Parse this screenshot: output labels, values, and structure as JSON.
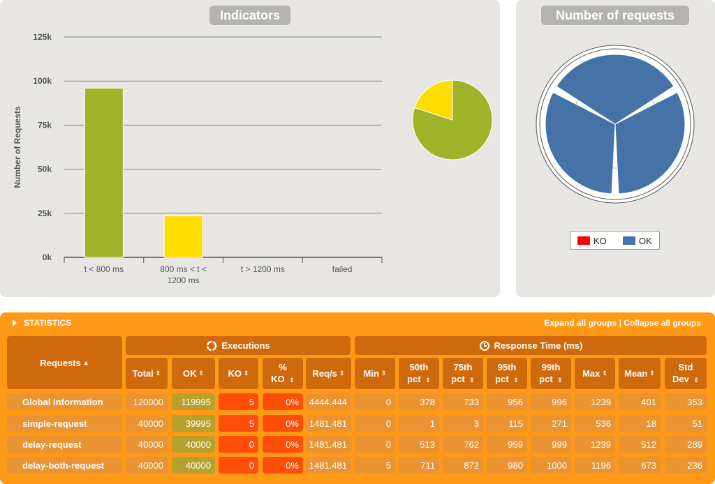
{
  "indicators": {
    "title": "Indicators",
    "y_axis_title": "Number of Requests",
    "colors": {
      "green": "#a0b228",
      "yellow": "#ffdd00"
    }
  },
  "chart_data": [
    {
      "type": "bar",
      "categories": [
        "t < 800 ms",
        "800 ms < t < 1200 ms",
        "t > 1200 ms",
        "failed"
      ],
      "values": [
        96000,
        23500,
        0,
        0
      ],
      "colors": [
        "#a0b228",
        "#ffdd00",
        "#ff9916",
        "#ff0000"
      ],
      "ylabel": "Number of Requests",
      "ylim": [
        0,
        125000
      ],
      "yticks": [
        "0k",
        "25k",
        "50k",
        "75k",
        "100k",
        "125k"
      ],
      "grid": true
    },
    {
      "type": "pie",
      "values": [
        80,
        20
      ],
      "colors": [
        "#a0b228",
        "#ffdd00"
      ]
    },
    {
      "type": "pie",
      "title": "Number of requests",
      "categories": [
        "simple-request",
        "delay-request",
        "delay-both-request"
      ],
      "values": [
        40000,
        40000,
        40000
      ],
      "ok": [
        39995,
        40000,
        40000
      ],
      "ko": [
        5,
        0,
        0
      ],
      "series": [
        {
          "name": "KO"
        },
        {
          "name": "OK"
        }
      ],
      "colors": {
        "KO": "#ff0000",
        "OK": "#4572a7"
      },
      "radial_labels": [
        "25k",
        "0k"
      ]
    }
  ],
  "requests_chart": {
    "title": "Number of requests",
    "legend": [
      {
        "label": "KO",
        "color": "#ff0000"
      },
      {
        "label": "OK",
        "color": "#4572a7"
      }
    ]
  },
  "stats": {
    "title": "STATISTICS",
    "expand_label": "Expand all groups",
    "separator": "|",
    "collapse_label": "Collapse all groups",
    "headers": {
      "requests": "Requests",
      "executions": "Executions",
      "response_time": "Response Time (ms)",
      "total": "Total",
      "ok": "OK",
      "ko": "KO",
      "pct_ko_1": "%",
      "pct_ko_2": "KO",
      "reqs": "Req/s",
      "min": "Min",
      "p50_1": "50th",
      "p75_1": "75th",
      "p95_1": "95th",
      "p99_1": "99th",
      "pct": "pct",
      "max": "Max",
      "mean": "Mean",
      "std_1": "Std",
      "std_2": "Dev"
    },
    "rows": [
      {
        "name": "Global Information",
        "total": "120000",
        "ok": "119995",
        "ko": "5",
        "pct_ko": "0%",
        "reqs": "4444.444",
        "min": "0",
        "p50": "378",
        "p75": "733",
        "p95": "956",
        "p99": "996",
        "max": "1239",
        "mean": "401",
        "std": "353"
      },
      {
        "name": "simple-request",
        "total": "40000",
        "ok": "39995",
        "ko": "5",
        "pct_ko": "0%",
        "reqs": "1481.481",
        "min": "0",
        "p50": "1",
        "p75": "3",
        "p95": "115",
        "p99": "271",
        "max": "536",
        "mean": "18",
        "std": "51"
      },
      {
        "name": "delay-request",
        "total": "40000",
        "ok": "40000",
        "ko": "0",
        "pct_ko": "0%",
        "reqs": "1481.481",
        "min": "0",
        "p50": "513",
        "p75": "762",
        "p95": "959",
        "p99": "999",
        "max": "1239",
        "mean": "512",
        "std": "289"
      },
      {
        "name": "delay-both-request",
        "total": "40000",
        "ok": "40000",
        "ko": "0",
        "pct_ko": "0%",
        "reqs": "1481.481",
        "min": "5",
        "p50": "711",
        "p75": "872",
        "p95": "980",
        "p99": "1000",
        "max": "1196",
        "mean": "673",
        "std": "236"
      }
    ]
  }
}
